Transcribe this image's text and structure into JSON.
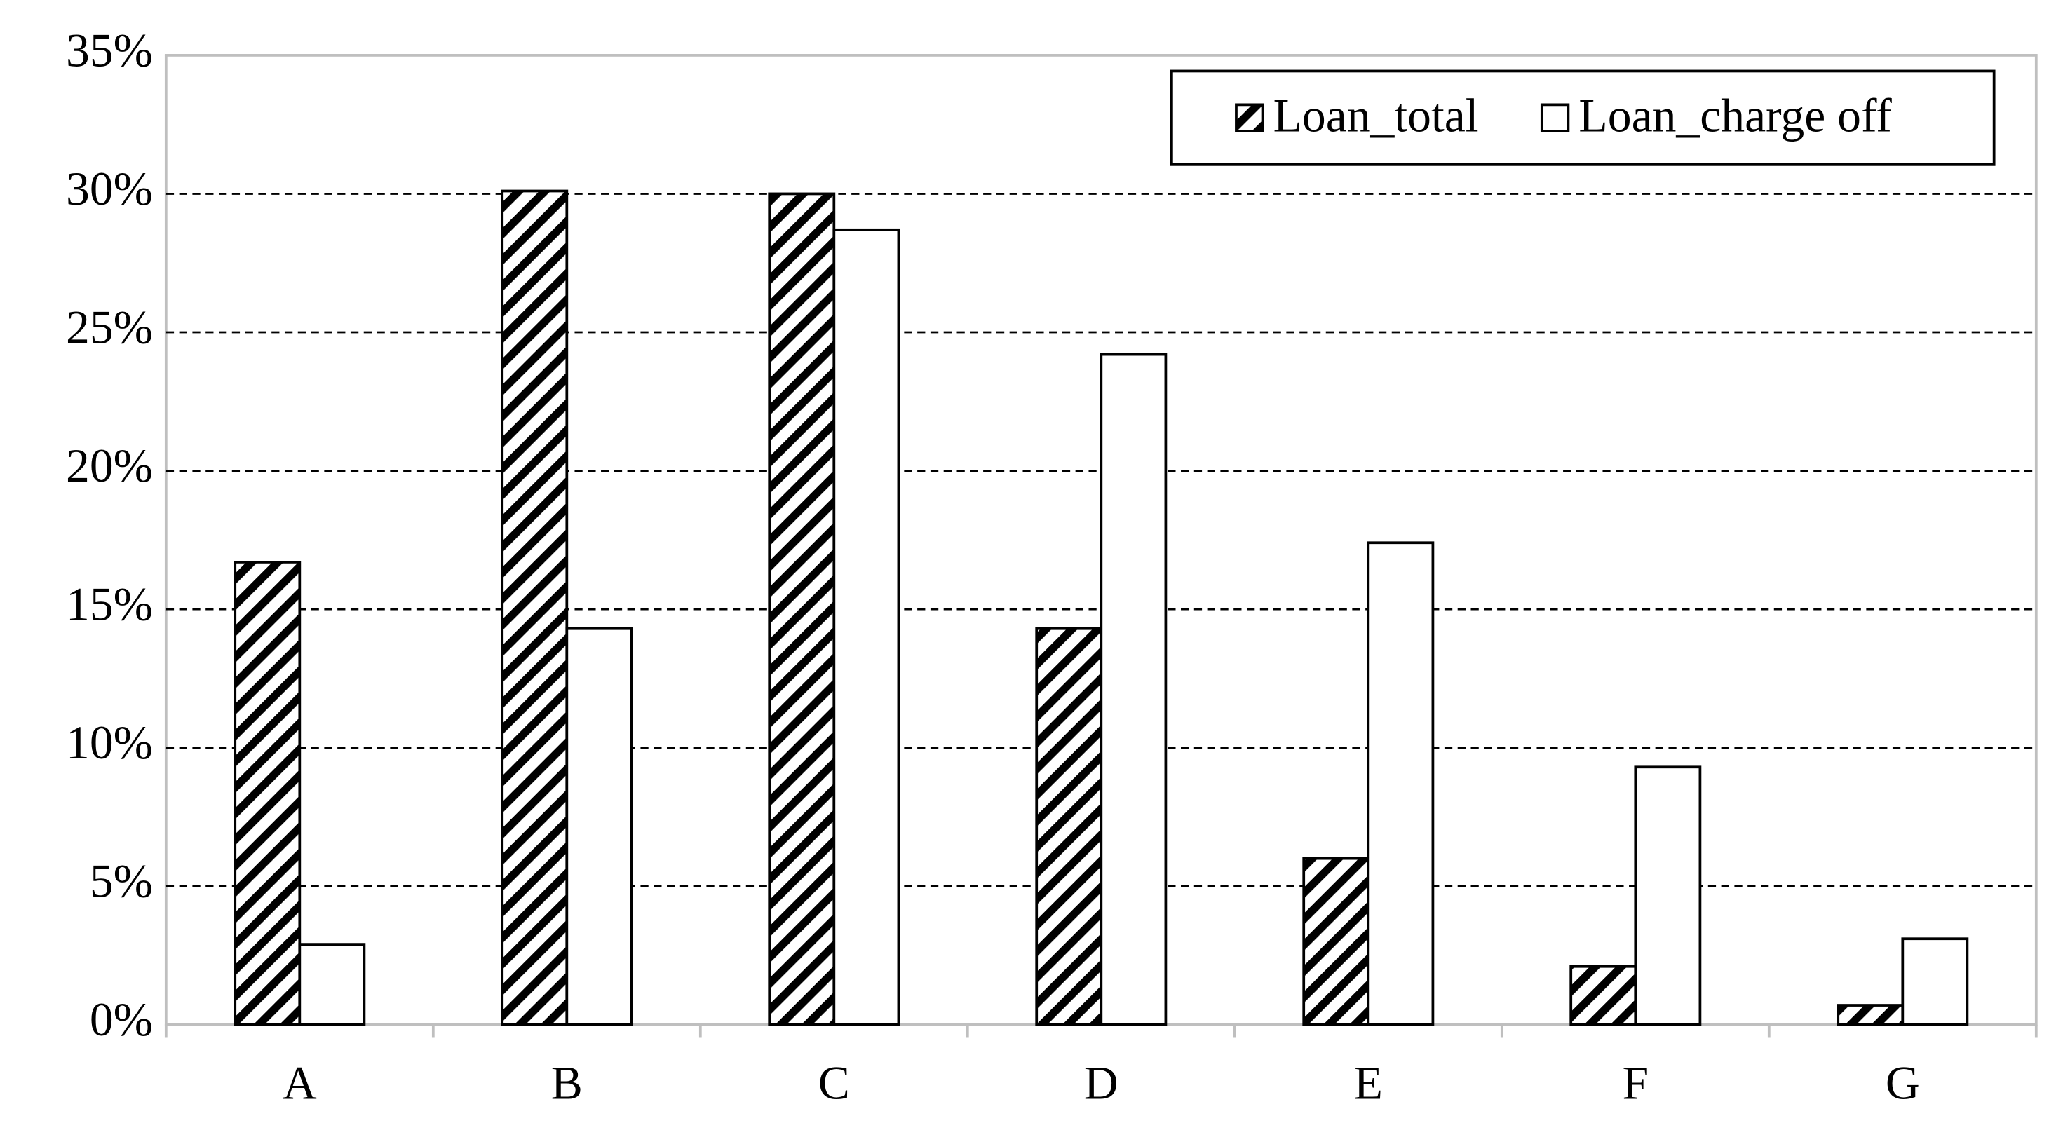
{
  "chart_data": {
    "type": "bar",
    "categories": [
      "A",
      "B",
      "C",
      "D",
      "E",
      "F",
      "G"
    ],
    "series": [
      {
        "name": "Loan_total",
        "color": "#000000",
        "hatch": true,
        "values": [
          16.7,
          30.1,
          30.0,
          14.3,
          6.0,
          2.1,
          0.7
        ]
      },
      {
        "name": "Loan_charge off",
        "color": "#ffffff",
        "hatch": false,
        "values": [
          2.9,
          14.3,
          28.7,
          24.2,
          17.4,
          9.3,
          3.1
        ]
      }
    ],
    "ylim": [
      0,
      35
    ],
    "yticks": [
      {
        "value": 0,
        "label": "0%"
      },
      {
        "value": 5,
        "label": "5%"
      },
      {
        "value": 10,
        "label": "10%"
      },
      {
        "value": 15,
        "label": "15%"
      },
      {
        "value": 20,
        "label": "20%"
      },
      {
        "value": 25,
        "label": "25%"
      },
      {
        "value": 30,
        "label": "30%"
      },
      {
        "value": 35,
        "label": "35%"
      }
    ],
    "grid": true,
    "legend": "top-right"
  }
}
